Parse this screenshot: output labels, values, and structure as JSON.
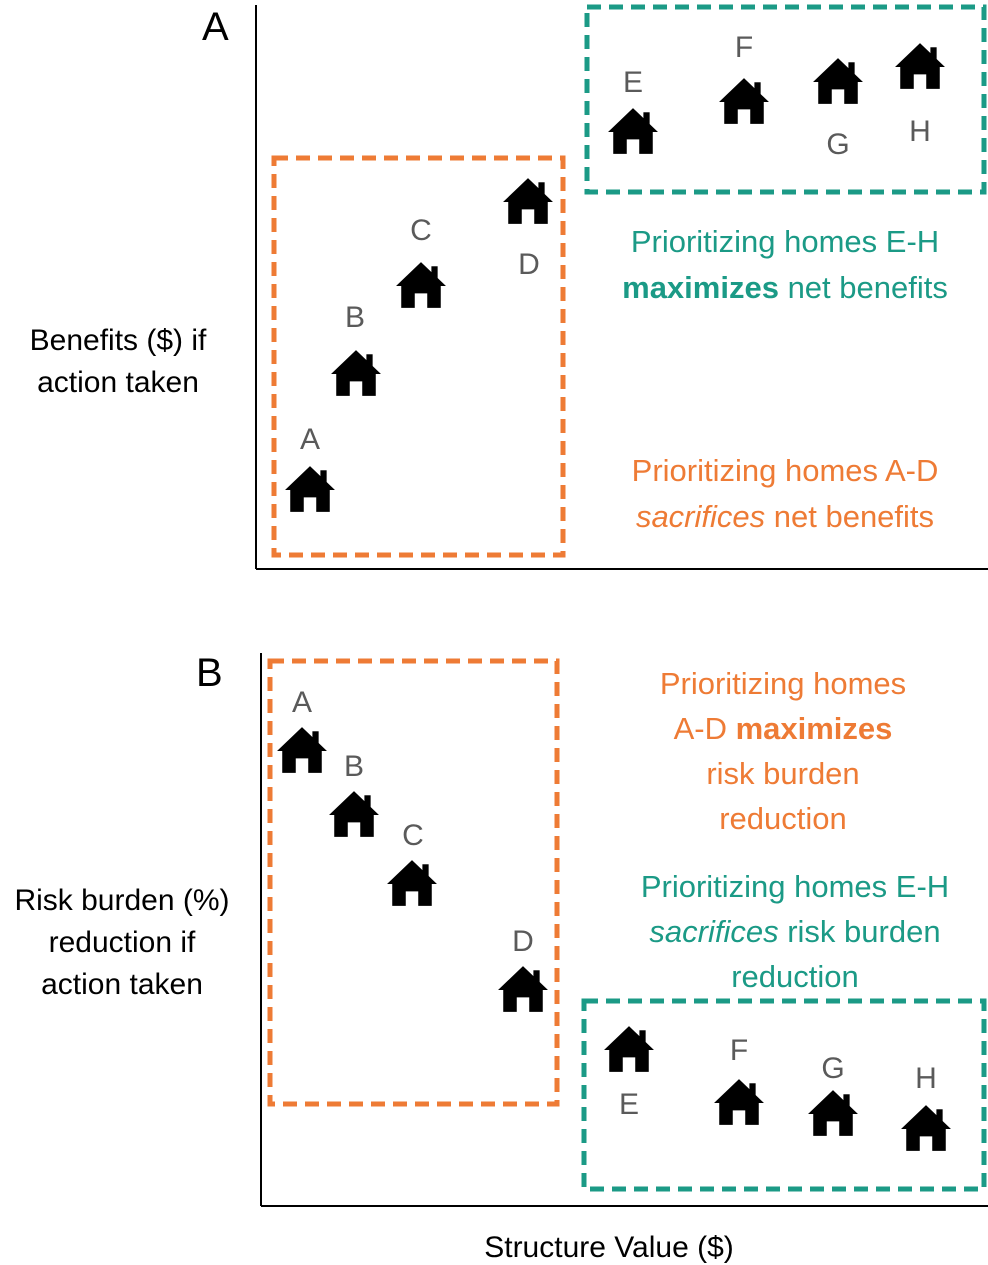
{
  "colors": {
    "teal": "#1b9a86",
    "orange": "#ee7b35",
    "label_gray": "#5a5a5a",
    "axis": "#000000"
  },
  "icon": "house-icon",
  "panel_a": {
    "letter": "A",
    "ylabel": [
      "Benefits ($) if",
      "action taken"
    ],
    "houses": [
      {
        "label": "A"
      },
      {
        "label": "B"
      },
      {
        "label": "C"
      },
      {
        "label": "D"
      },
      {
        "label": "E"
      },
      {
        "label": "F"
      },
      {
        "label": "G"
      },
      {
        "label": "H"
      }
    ],
    "teal_annotation": {
      "line1": "Prioritizing homes E-H",
      "line2_bold": "maximizes",
      "line2_rest": " net benefits"
    },
    "orange_annotation": {
      "line1": "Prioritizing homes A-D",
      "line2_italic": "sacrifices",
      "line2_rest": " net benefits"
    }
  },
  "panel_b": {
    "letter": "B",
    "ylabel": [
      "Risk burden (%)",
      "reduction if",
      "action taken"
    ],
    "houses": [
      {
        "label": "A"
      },
      {
        "label": "B"
      },
      {
        "label": "C"
      },
      {
        "label": "D"
      },
      {
        "label": "E"
      },
      {
        "label": "F"
      },
      {
        "label": "G"
      },
      {
        "label": "H"
      }
    ],
    "orange_annotation": {
      "line1": "Prioritizing homes",
      "line2_plain": "A-D ",
      "line2_bold": "maximizes",
      "line3": "risk burden",
      "line4": "reduction"
    },
    "teal_annotation": {
      "line1": "Prioritizing homes E-H",
      "line2_italic": "sacrifices",
      "line2_rest": " risk burden",
      "line3": "reduction"
    }
  },
  "xlabel": "Structure Value ($)"
}
